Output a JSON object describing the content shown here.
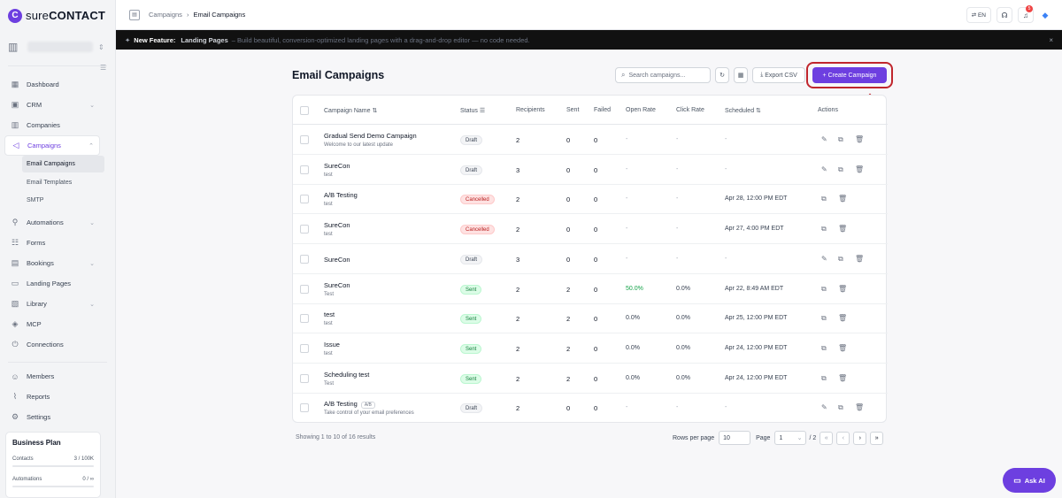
{
  "app": {
    "logo_letter": "C",
    "logo_text_light": "sure",
    "logo_text_bold": "CONTACT"
  },
  "sidebar": {
    "nav": [
      {
        "label": "Dashboard",
        "icon": "dashboard-icon"
      },
      {
        "label": "CRM",
        "icon": "contact-card-icon",
        "has_chevron": true
      },
      {
        "label": "Companies",
        "icon": "building-icon"
      },
      {
        "label": "Campaigns",
        "icon": "megaphone-icon",
        "has_chevron": true,
        "active": true
      },
      {
        "label": "Automations",
        "icon": "flow-icon",
        "has_chevron": true
      },
      {
        "label": "Forms",
        "icon": "form-icon"
      },
      {
        "label": "Bookings",
        "icon": "calendar-icon",
        "has_chevron": true
      },
      {
        "label": "Landing Pages",
        "icon": "layout-icon"
      },
      {
        "label": "Library",
        "icon": "library-icon",
        "has_chevron": true
      },
      {
        "label": "MCP",
        "icon": "mcp-icon"
      },
      {
        "label": "Connections",
        "icon": "plug-icon"
      },
      {
        "label": "Members",
        "icon": "users-icon"
      },
      {
        "label": "Reports",
        "icon": "chart-icon"
      },
      {
        "label": "Settings",
        "icon": "gear-icon"
      }
    ],
    "sub_items": [
      {
        "label": "Email Campaigns",
        "active": true
      },
      {
        "label": "Email Templates"
      },
      {
        "label": "SMTP"
      }
    ],
    "plan": {
      "title": "Business Plan",
      "rows": [
        {
          "label": "Contacts",
          "value": "3 / 100K"
        },
        {
          "label": "Automations",
          "value": "0 / ∞"
        }
      ]
    }
  },
  "topbar": {
    "breadcrumb": [
      "Campaigns",
      "Email Campaigns"
    ],
    "lang": "EN",
    "notification_count": "5"
  },
  "banner": {
    "feature": "New Feature:",
    "title": "Landing Pages",
    "description": "– Build beautiful, conversion-optimized landing pages with a drag-and-drop editor — no code needed."
  },
  "main": {
    "title": "Email Campaigns",
    "search_placeholder": "Search campaigns...",
    "export_label": "Export CSV",
    "create_label": "+ Create Campaign",
    "columns": [
      "Campaign Name",
      "Status",
      "Recipients",
      "Sent",
      "Failed",
      "Open Rate",
      "Click Rate",
      "Scheduled",
      "Actions"
    ],
    "rows": [
      {
        "name": "Gradual Send Demo Campaign",
        "desc": "Welcome to our latest update",
        "status": "Draft",
        "recipients": "2",
        "sent": "0",
        "failed": "0",
        "open": "-",
        "click": "-",
        "scheduled": "-",
        "edit": true
      },
      {
        "name": "SureCon",
        "desc": "test",
        "status": "Draft",
        "recipients": "3",
        "sent": "0",
        "failed": "0",
        "open": "-",
        "click": "-",
        "scheduled": "-",
        "edit": true
      },
      {
        "name": "A/B Testing",
        "desc": "test",
        "status": "Cancelled",
        "recipients": "2",
        "sent": "0",
        "failed": "0",
        "open": "-",
        "click": "-",
        "scheduled": "Apr 28, 12:00 PM EDT",
        "edit": false
      },
      {
        "name": "SureCon",
        "desc": "test",
        "status": "Cancelled",
        "recipients": "2",
        "sent": "0",
        "failed": "0",
        "open": "-",
        "click": "-",
        "scheduled": "Apr 27, 4:00 PM EDT",
        "edit": false
      },
      {
        "name": "SureCon",
        "desc": "",
        "status": "Draft",
        "recipients": "3",
        "sent": "0",
        "failed": "0",
        "open": "-",
        "click": "-",
        "scheduled": "-",
        "edit": true
      },
      {
        "name": "SureCon",
        "desc": "Test",
        "status": "Sent",
        "recipients": "2",
        "sent": "2",
        "failed": "0",
        "open": "50.0%",
        "click": "0.0%",
        "scheduled": "Apr 22, 8:49 AM EDT",
        "edit": false
      },
      {
        "name": "test",
        "desc": "test",
        "status": "Sent",
        "recipients": "2",
        "sent": "2",
        "failed": "0",
        "open": "0.0%",
        "click": "0.0%",
        "scheduled": "Apr 25, 12:00 PM EDT",
        "edit": false
      },
      {
        "name": "Issue",
        "desc": "test",
        "status": "Sent",
        "recipients": "2",
        "sent": "2",
        "failed": "0",
        "open": "0.0%",
        "click": "0.0%",
        "scheduled": "Apr 24, 12:00 PM EDT",
        "edit": false
      },
      {
        "name": "Scheduling test",
        "desc": "Test",
        "status": "Sent",
        "recipients": "2",
        "sent": "2",
        "failed": "0",
        "open": "0.0%",
        "click": "0.0%",
        "scheduled": "Apr 24, 12:00 PM EDT",
        "edit": false
      },
      {
        "name": "A/B Testing",
        "tag": "A/B",
        "desc": "Take control of your email preferences",
        "status": "Draft",
        "recipients": "2",
        "sent": "0",
        "failed": "0",
        "open": "-",
        "click": "-",
        "scheduled": "-",
        "edit": true
      }
    ],
    "footer": {
      "summary": "Showing 1 to 10 of 16 results",
      "rows_per_page_label": "Rows per page",
      "rows_per_page": "10",
      "page_label": "Page",
      "page": "1",
      "total_pages": "/ 2"
    }
  },
  "ask_ai": "Ask AI",
  "colors": {
    "accent": "#6d3fe0",
    "highlight": "#c0262d"
  }
}
